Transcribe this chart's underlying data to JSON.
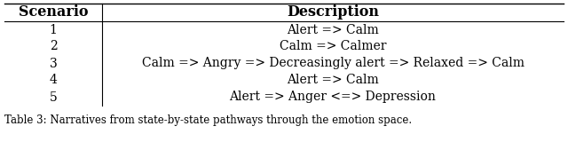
{
  "col_headers": [
    "Scenario",
    "Description"
  ],
  "rows": [
    [
      "1",
      "Alert => Calm"
    ],
    [
      "2",
      "Calm => Calmer"
    ],
    [
      "3",
      "Calm => Angry => Decreasingly alert => Relaxed => Calm"
    ],
    [
      "4",
      "Alert => Calm"
    ],
    [
      "5",
      "Alert => Anger <=> Depression"
    ]
  ],
  "header_fontsize": 11.5,
  "cell_fontsize": 10,
  "caption_fontsize": 8.5,
  "bg_color": "#ffffff",
  "line_color": "#000000",
  "caption": "Table 3: Narratives from state-by-state pathways through the emotion space."
}
